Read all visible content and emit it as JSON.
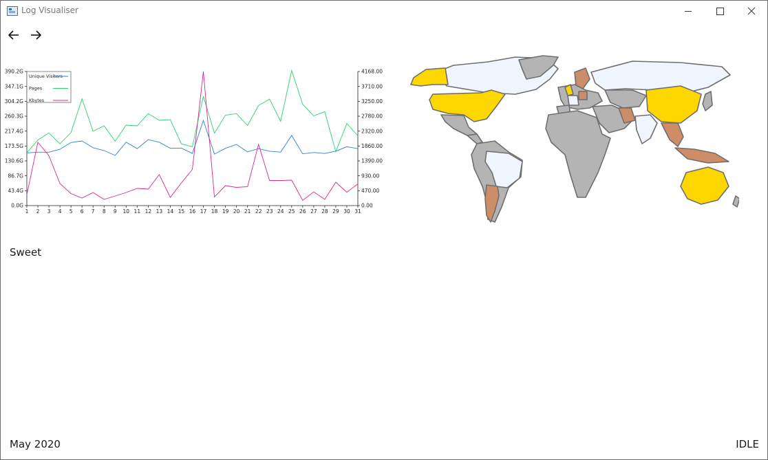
{
  "window": {
    "title": "Log Visualiser"
  },
  "toolbar": {
    "back_icon": "arrow-left-icon",
    "forward_icon": "arrow-right-icon"
  },
  "message": "Sweet",
  "status": {
    "period": "May 2020",
    "state": "IDLE"
  },
  "chart_data": {
    "type": "line",
    "x": [
      1,
      2,
      3,
      4,
      5,
      6,
      7,
      8,
      9,
      10,
      11,
      12,
      13,
      14,
      15,
      16,
      17,
      18,
      19,
      20,
      21,
      22,
      23,
      24,
      25,
      26,
      27,
      28,
      29,
      30,
      31
    ],
    "xticks": [
      "1",
      "2",
      "3",
      "4",
      "5",
      "6",
      "7",
      "8",
      "9",
      "10",
      "11",
      "12",
      "13",
      "14",
      "15",
      "16",
      "17",
      "18",
      "19",
      "20",
      "21",
      "22",
      "23",
      "24",
      "25",
      "26",
      "27",
      "28",
      "29",
      "30",
      "31"
    ],
    "y_left_ticks": [
      "0.0G",
      "43.4G",
      "86.7G",
      "130.6G",
      "173.5G",
      "217.4G",
      "260.3G",
      "304.2G",
      "347.1G",
      "390.2G"
    ],
    "y_right_ticks": [
      "0.00",
      "470.00",
      "930.00",
      "1390.00",
      "1860.00",
      "2320.00",
      "2780.00",
      "3250.00",
      "3710.00",
      "4168.00"
    ],
    "ylim_left": [
      0,
      390.2
    ],
    "ylim_right": [
      0,
      4168
    ],
    "legend_position": "top-left",
    "series": [
      {
        "name": "Unique Visitors",
        "axis": "right",
        "color": "#2c7fd6",
        "values": [
          1640,
          1660,
          1660,
          1750,
          1960,
          2010,
          1800,
          1710,
          1560,
          1970,
          1770,
          2050,
          1970,
          1780,
          1790,
          1620,
          2650,
          1600,
          1780,
          1900,
          1670,
          1770,
          1690,
          1660,
          2180,
          1610,
          1650,
          1620,
          1690,
          1830,
          1770
        ]
      },
      {
        "name": "Pages",
        "axis": "right",
        "color": "#29d46b",
        "values": [
          1640,
          2040,
          2260,
          1920,
          2270,
          3320,
          2310,
          2480,
          2000,
          2500,
          2480,
          2860,
          2650,
          2670,
          1920,
          1830,
          3400,
          2250,
          2810,
          2860,
          2490,
          3110,
          3310,
          2620,
          4200,
          3150,
          2790,
          2920,
          1680,
          2550,
          2170
        ]
      },
      {
        "name": "Kbytes",
        "axis": "left",
        "color": "#e0248c",
        "values": [
          32,
          184,
          145,
          64,
          35,
          22,
          38,
          18,
          28,
          38,
          50,
          48,
          90,
          24,
          66,
          105,
          390,
          25,
          58,
          53,
          55,
          178,
          73,
          73,
          74,
          15,
          40,
          18,
          68,
          39,
          63
        ]
      }
    ]
  },
  "map": {
    "legend_hidden": true,
    "colors": {
      "top": "#ffd700",
      "high": "#cd8d67",
      "low": "#f0f6ff",
      "none": "#b4b4b4",
      "border": "#6e6e6e"
    }
  }
}
